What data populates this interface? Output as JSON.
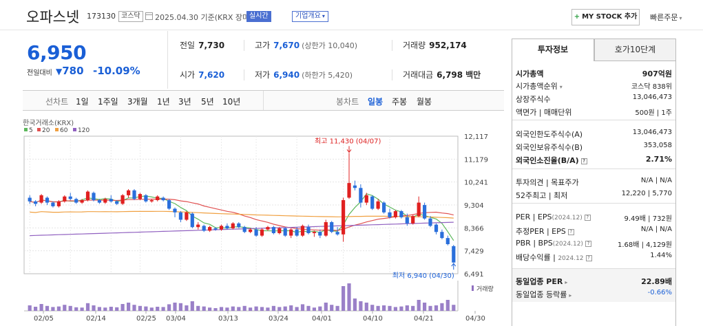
{
  "header": {
    "stock_name": "오파스넷",
    "stock_code": "173130",
    "market": "코스닥",
    "date_text": "2025.04.30 기준(KRX 장마감)",
    "realtime_label": "실시간",
    "overview_label": "기업개요",
    "mystock_label": "MY STOCK 추가",
    "quick_order_label": "빠른주문"
  },
  "price": {
    "current": "6,950",
    "vs_label": "전일대비",
    "change_amount": "780",
    "change_percent": "-10.09%"
  },
  "stats": {
    "prev_close_label": "전일",
    "prev_close": "7,730",
    "high_label": "고가",
    "high": "7,670",
    "upper_limit": "(상한가 10,040)",
    "volume_label": "거래량",
    "volume": "952,174",
    "open_label": "시가",
    "open": "7,620",
    "low_label": "저가",
    "low": "6,940",
    "lower_limit": "(하한가 5,420)",
    "amount_label": "거래대금",
    "amount": "6,798",
    "amount_unit": "백만"
  },
  "period_tabs": {
    "line_label": "선차트",
    "line_items": [
      "1일",
      "1주일",
      "3개월",
      "1년",
      "3년",
      "5년",
      "10년"
    ],
    "candle_label": "봉차트",
    "candle_items": [
      "일봉",
      "주봉",
      "월봉"
    ],
    "active": "일봉"
  },
  "chart_data": {
    "type": "candlestick",
    "source_label": "한국거래소(KRX)",
    "ma_legend": [
      {
        "name": "5",
        "color": "#5cb85c"
      },
      {
        "name": "20",
        "color": "#e05050"
      },
      {
        "name": "60",
        "color": "#f0a040"
      },
      {
        "name": "120",
        "color": "#9060c0"
      }
    ],
    "y_ticks": [
      "12,117",
      "11,179",
      "10,241",
      "9,304",
      "8,366",
      "7,429",
      "6,491"
    ],
    "ylim": [
      6491,
      12117
    ],
    "x_labels": [
      "02/05",
      "02/14",
      "02/25",
      "03/04",
      "03/13",
      "03/24",
      "04/01",
      "04/10",
      "04/21",
      "04/30"
    ],
    "high_annotation": "최고 11,430 (04/07)",
    "low_annotation": "최저 6,940 (04/30)",
    "volume_label": "거래량",
    "up_color": "#e02020",
    "down_color": "#2a6fdb",
    "candles": [
      [
        9600,
        9700,
        9350,
        9450
      ],
      [
        9450,
        9500,
        9250,
        9350
      ],
      [
        9400,
        9750,
        9350,
        9700
      ],
      [
        9600,
        9650,
        9300,
        9400
      ],
      [
        9400,
        9450,
        9200,
        9250
      ],
      [
        9250,
        9500,
        9200,
        9450
      ],
      [
        9450,
        9700,
        9400,
        9650
      ],
      [
        9650,
        9800,
        9500,
        9550
      ],
      [
        9550,
        9600,
        9350,
        9400
      ],
      [
        9400,
        9550,
        9350,
        9500
      ],
      [
        9500,
        9900,
        9450,
        9850
      ],
      [
        9800,
        9850,
        9450,
        9500
      ],
      [
        9500,
        9550,
        9350,
        9400
      ],
      [
        9400,
        9600,
        9350,
        9550
      ],
      [
        9550,
        9700,
        9400,
        9450
      ],
      [
        9450,
        9500,
        9300,
        9350
      ],
      [
        9350,
        9750,
        9300,
        9700
      ],
      [
        9700,
        9950,
        9600,
        9900
      ],
      [
        9900,
        9950,
        9500,
        9550
      ],
      [
        9550,
        9800,
        9500,
        9750
      ],
      [
        9700,
        9750,
        9400,
        9450
      ],
      [
        9450,
        9550,
        9400,
        9500
      ],
      [
        9500,
        9700,
        9450,
        9650
      ],
      [
        9600,
        9650,
        9450,
        9500
      ],
      [
        9500,
        9550,
        9100,
        9150
      ],
      [
        9150,
        9200,
        8800,
        9000
      ],
      [
        9000,
        9050,
        8600,
        8700
      ],
      [
        8700,
        9050,
        8650,
        9000
      ],
      [
        8950,
        9000,
        8350,
        8400
      ],
      [
        8400,
        8600,
        8300,
        8500
      ],
      [
        8450,
        8500,
        8200,
        8250
      ],
      [
        8250,
        8450,
        8200,
        8400
      ],
      [
        8350,
        8400,
        8250,
        8300
      ],
      [
        8300,
        8500,
        8250,
        8450
      ],
      [
        8450,
        8550,
        8300,
        8350
      ],
      [
        8350,
        8600,
        8300,
        8550
      ],
      [
        8550,
        8600,
        8350,
        8400
      ],
      [
        8400,
        8450,
        8150,
        8200
      ],
      [
        8200,
        8350,
        8150,
        8300
      ],
      [
        8300,
        8400,
        8000,
        8050
      ],
      [
        8050,
        8350,
        8000,
        8300
      ],
      [
        8300,
        8450,
        8250,
        8400
      ],
      [
        8400,
        8450,
        8100,
        8150
      ],
      [
        8150,
        8400,
        8100,
        8350
      ],
      [
        8350,
        8400,
        8000,
        8050
      ],
      [
        8050,
        8350,
        7950,
        8300
      ],
      [
        8300,
        8400,
        8000,
        8050
      ],
      [
        8050,
        8500,
        8000,
        8450
      ],
      [
        8400,
        8500,
        8100,
        8150
      ],
      [
        8150,
        8250,
        8000,
        8200
      ],
      [
        8200,
        8300,
        7950,
        8050
      ],
      [
        8050,
        8700,
        8000,
        8600
      ],
      [
        8600,
        8650,
        8150,
        8200
      ],
      [
        8200,
        8400,
        8050,
        8100
      ],
      [
        8100,
        9600,
        7800,
        9500
      ],
      [
        9600,
        11430,
        9550,
        10200
      ],
      [
        10100,
        10300,
        9900,
        10000
      ],
      [
        10000,
        10150,
        9200,
        9400
      ],
      [
        9400,
        9800,
        9300,
        9700
      ],
      [
        9650,
        9700,
        9100,
        9150
      ],
      [
        9150,
        9550,
        9100,
        9450
      ],
      [
        9400,
        9450,
        8950,
        9000
      ],
      [
        9000,
        9150,
        8750,
        8800
      ],
      [
        8800,
        9100,
        8750,
        9050
      ],
      [
        9050,
        9100,
        8750,
        8800
      ],
      [
        8800,
        8950,
        8450,
        8550
      ],
      [
        8550,
        8900,
        8500,
        8850
      ],
      [
        8850,
        9650,
        8800,
        9400
      ],
      [
        9300,
        9400,
        8700,
        8750
      ],
      [
        8750,
        8850,
        8400,
        8450
      ],
      [
        8500,
        8550,
        8100,
        8200
      ],
      [
        8200,
        8300,
        7900,
        7950
      ],
      [
        7950,
        8050,
        7650,
        7700
      ],
      [
        7620,
        7670,
        6940,
        6950
      ]
    ],
    "volumes": [
      20,
      15,
      25,
      18,
      14,
      16,
      22,
      18,
      13,
      12,
      28,
      20,
      14,
      12,
      15,
      13,
      25,
      30,
      22,
      18,
      16,
      12,
      15,
      14,
      24,
      30,
      28,
      20,
      35,
      18,
      16,
      12,
      10,
      14,
      12,
      16,
      14,
      18,
      12,
      16,
      14,
      12,
      18,
      14,
      16,
      20,
      14,
      24,
      18,
      12,
      16,
      30,
      22,
      18,
      90,
      100,
      45,
      35,
      30,
      22,
      18,
      20,
      18,
      14,
      16,
      20,
      18,
      40,
      30,
      18,
      20,
      28,
      40,
      22
    ]
  },
  "right_panel": {
    "tab_invest": "투자정보",
    "tab_orderbook": "호가10단계",
    "section1": [
      {
        "label": "시가총액",
        "value": "907억원"
      },
      {
        "label": "시가총액순위",
        "value": "코스닥 838위"
      },
      {
        "label": "상장주식수",
        "value": "13,046,473"
      },
      {
        "label": "액면가 | 매매단위",
        "value": "500원 | 1주"
      }
    ],
    "section2": [
      {
        "label": "외국인한도주식수(A)",
        "value": "13,046,473"
      },
      {
        "label": "외국인보유주식수(B)",
        "value": "353,058"
      },
      {
        "label": "외국인소진율(B/A)",
        "value": "2.71%"
      }
    ],
    "section3": [
      {
        "label": "투자의견 | 목표주가",
        "value": "N/A | N/A"
      },
      {
        "label": "52주최고 | 최저",
        "value": "12,220 | 5,770"
      }
    ],
    "section4": [
      {
        "label": "PER | EPS",
        "tag": "(2024.12)",
        "value": "9.49배 | 732원"
      },
      {
        "label": "추정PER | EPS",
        "value": "N/A | N/A"
      },
      {
        "label": "PBR | BPS",
        "tag": "(2024.12)",
        "value": "1.68배 | 4,129원"
      },
      {
        "label": "배당수익률 | ",
        "tag": "2024.12",
        "value": "1.44%"
      }
    ],
    "section5": [
      {
        "label": "동일업종 PER",
        "value": "22.89배"
      },
      {
        "label": "동일업종 등락률",
        "value": "-0.66%"
      }
    ]
  }
}
